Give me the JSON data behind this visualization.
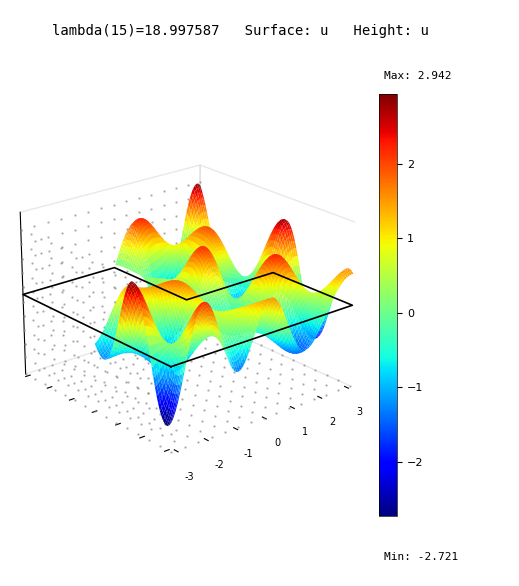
{
  "title": "lambda(15)=18.997587   Surface: u   Height: u",
  "lambda_val": 18.997587,
  "lambda_index": 15,
  "max_val": 2.942,
  "min_val": -2.721,
  "colormap": "jet",
  "elev": 22,
  "azim": -130,
  "background_color": "#ffffff",
  "title_fontsize": 10,
  "title_color": "#000000",
  "domain_border_x": [
    -3.14159,
    -3.14159,
    0.0,
    0.0,
    3.14159,
    3.14159,
    -3.14159
  ],
  "domain_border_y": [
    -3.14159,
    3.14159,
    3.14159,
    0.0,
    0.0,
    -3.14159,
    -3.14159
  ],
  "cbar_ticks": [
    -2,
    -1,
    0,
    1,
    2
  ]
}
